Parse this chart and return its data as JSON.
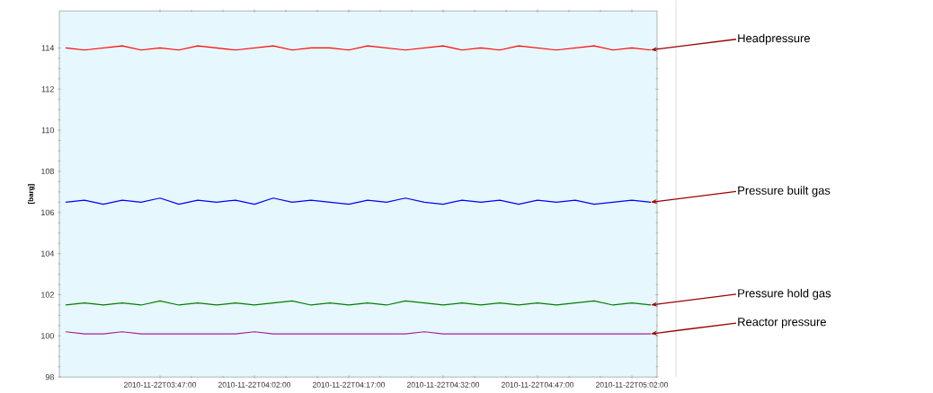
{
  "chart_data": {
    "type": "line",
    "ylabel": "[barg]",
    "x": [
      "2010-11-22T03:32",
      "2010-11-22T03:35",
      "2010-11-22T03:38",
      "2010-11-22T03:41",
      "2010-11-22T03:44",
      "2010-11-22T03:47",
      "2010-11-22T03:50",
      "2010-11-22T03:53",
      "2010-11-22T03:56",
      "2010-11-22T03:59",
      "2010-11-22T04:02",
      "2010-11-22T04:05",
      "2010-11-22T04:08",
      "2010-11-22T04:11",
      "2010-11-22T04:14",
      "2010-11-22T04:17",
      "2010-11-22T04:20",
      "2010-11-22T04:23",
      "2010-11-22T04:26",
      "2010-11-22T04:29",
      "2010-11-22T04:32",
      "2010-11-22T04:35",
      "2010-11-22T04:38",
      "2010-11-22T04:41",
      "2010-11-22T04:44",
      "2010-11-22T04:47",
      "2010-11-22T04:50",
      "2010-11-22T04:53",
      "2010-11-22T04:56",
      "2010-11-22T04:59",
      "2010-11-22T05:02",
      "2010-11-22T05:05"
    ],
    "series": [
      {
        "name": "Headpressure",
        "color": "#ff0000",
        "values": [
          114.0,
          113.9,
          114.0,
          114.1,
          113.9,
          114.0,
          113.9,
          114.1,
          114.0,
          113.9,
          114.0,
          114.1,
          113.9,
          114.0,
          114.0,
          113.9,
          114.1,
          114.0,
          113.9,
          114.0,
          114.1,
          113.9,
          114.0,
          113.9,
          114.1,
          114.0,
          113.9,
          114.0,
          114.1,
          113.9,
          114.0,
          113.9
        ]
      },
      {
        "name": "Pressure built gas",
        "color": "#0000ff",
        "values": [
          106.5,
          106.6,
          106.4,
          106.6,
          106.5,
          106.7,
          106.4,
          106.6,
          106.5,
          106.6,
          106.4,
          106.7,
          106.5,
          106.6,
          106.5,
          106.4,
          106.6,
          106.5,
          106.7,
          106.5,
          106.4,
          106.6,
          106.5,
          106.6,
          106.4,
          106.6,
          106.5,
          106.6,
          106.4,
          106.5,
          106.6,
          106.5
        ]
      },
      {
        "name": "Pressure hold gas",
        "color": "#008000",
        "values": [
          101.5,
          101.6,
          101.5,
          101.6,
          101.5,
          101.7,
          101.5,
          101.6,
          101.5,
          101.6,
          101.5,
          101.6,
          101.7,
          101.5,
          101.6,
          101.5,
          101.6,
          101.5,
          101.7,
          101.6,
          101.5,
          101.6,
          101.5,
          101.6,
          101.5,
          101.6,
          101.5,
          101.6,
          101.7,
          101.5,
          101.6,
          101.5
        ]
      },
      {
        "name": "Reactor pressure",
        "color": "#a020a0",
        "values": [
          100.2,
          100.1,
          100.1,
          100.2,
          100.1,
          100.1,
          100.1,
          100.1,
          100.1,
          100.1,
          100.2,
          100.1,
          100.1,
          100.1,
          100.1,
          100.1,
          100.1,
          100.1,
          100.1,
          100.2,
          100.1,
          100.1,
          100.1,
          100.1,
          100.1,
          100.1,
          100.1,
          100.1,
          100.1,
          100.1,
          100.1,
          100.1
        ]
      }
    ],
    "xlim": [
      "2010-11-22T03:31",
      "2010-11-22T05:06"
    ],
    "xticks": [
      {
        "value": "2010-11-22T03:47",
        "label": "2010-11-22T03:47:00"
      },
      {
        "value": "2010-11-22T04:02",
        "label": "2010-11-22T04:02:00"
      },
      {
        "value": "2010-11-22T04:17",
        "label": "2010-11-22T04:17:00"
      },
      {
        "value": "2010-11-22T04:32",
        "label": "2010-11-22T04:32:00"
      },
      {
        "value": "2010-11-22T04:47",
        "label": "2010-11-22T04:47:00"
      },
      {
        "value": "2010-11-22T05:02",
        "label": "2010-11-22T05:02:00"
      }
    ],
    "ylim": [
      98,
      115.8
    ],
    "yticks": [
      98,
      100,
      102,
      104,
      106,
      108,
      110,
      112,
      114
    ],
    "grid": false,
    "marker": "none",
    "line_style": "solid"
  }
}
